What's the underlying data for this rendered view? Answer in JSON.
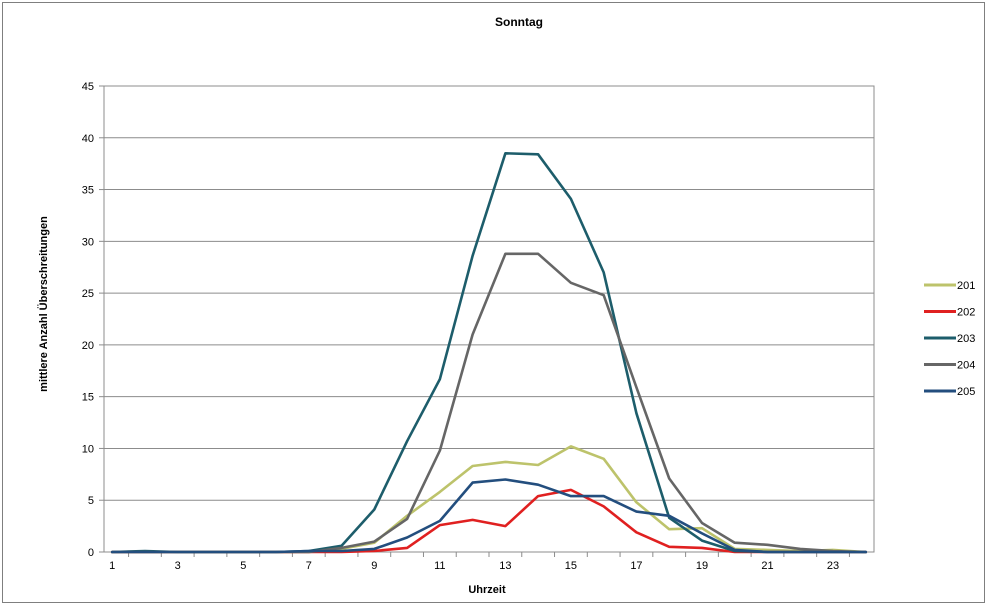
{
  "chart_data": {
    "type": "line",
    "title": "Sonntag",
    "xlabel": "Uhrzeit",
    "ylabel": "mittlere Anzahl Überschreitungen",
    "ylim": [
      0,
      45
    ],
    "yticks": [
      0,
      5,
      10,
      15,
      20,
      25,
      30,
      35,
      40,
      45
    ],
    "x": [
      1,
      2,
      3,
      4,
      5,
      6,
      7,
      8,
      9,
      10,
      11,
      12,
      13,
      14,
      15,
      16,
      17,
      18,
      19,
      20,
      21,
      22,
      23,
      24
    ],
    "xtick_labels": [
      "1",
      "3",
      "5",
      "7",
      "9",
      "11",
      "13",
      "15",
      "17",
      "19",
      "21",
      "23"
    ],
    "grid": true,
    "legend_position": "right",
    "series": [
      {
        "name": "201",
        "color": "#BDC36B",
        "values": [
          0,
          0,
          0,
          0,
          0,
          0,
          0,
          0.3,
          0.9,
          3.5,
          5.8,
          8.3,
          8.7,
          8.4,
          10.2,
          9.0,
          4.8,
          2.2,
          2.3,
          0.3,
          0.2,
          0.1,
          0.2,
          0
        ]
      },
      {
        "name": "202",
        "color": "#E02020",
        "values": [
          0,
          0,
          0,
          0,
          0,
          0,
          0,
          0,
          0.1,
          0.4,
          2.6,
          3.1,
          2.5,
          5.4,
          6.0,
          4.4,
          1.9,
          0.5,
          0.4,
          0,
          0,
          0,
          0,
          0
        ]
      },
      {
        "name": "203",
        "color": "#1D5D6B",
        "values": [
          0,
          0.1,
          0,
          0,
          0,
          0,
          0.1,
          0.6,
          4.1,
          10.7,
          16.7,
          28.6,
          38.5,
          38.4,
          34.1,
          27.0,
          13.4,
          3.3,
          1.1,
          0.1,
          0,
          0,
          0,
          0
        ]
      },
      {
        "name": "204",
        "color": "#666666",
        "values": [
          0,
          0,
          0,
          0,
          0,
          0,
          0,
          0.4,
          1.0,
          3.2,
          9.8,
          21.0,
          28.8,
          28.8,
          26.0,
          24.8,
          15.9,
          7.1,
          2.8,
          0.9,
          0.7,
          0.3,
          0.1,
          0
        ]
      },
      {
        "name": "205",
        "color": "#234E7E",
        "values": [
          0,
          0,
          0,
          0,
          0,
          0,
          0.1,
          0.1,
          0.3,
          1.4,
          3.0,
          6.7,
          7.0,
          6.5,
          5.4,
          5.4,
          3.9,
          3.5,
          1.8,
          0.2,
          0,
          0,
          0,
          0
        ]
      }
    ]
  }
}
